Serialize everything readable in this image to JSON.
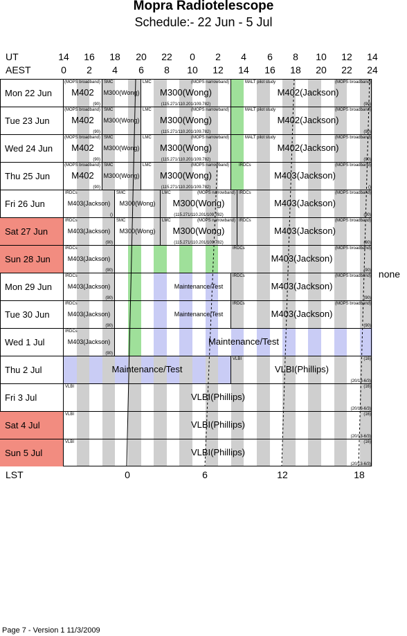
{
  "title": "Mopra Radiotelescope",
  "subtitle": "Schedule:- 22 Jun - 5  Jul",
  "axes": {
    "ut_label": "UT",
    "aest_label": "AEST",
    "lst_label": "LST",
    "ut_ticks": [
      "14",
      "16",
      "18",
      "20",
      "22",
      "0",
      "2",
      "4",
      "6",
      "8",
      "10",
      "12",
      "14"
    ],
    "aest_ticks": [
      "0",
      "2",
      "4",
      "6",
      "8",
      "10",
      "12",
      "14",
      "16",
      "18",
      "20",
      "22",
      "24"
    ],
    "lst_ticks": [
      "0",
      "6",
      "12",
      "18"
    ]
  },
  "side_note": "none",
  "footer": "Page 7 - Version 1  11/3/2009",
  "colors": {
    "weekend": "#f28c80",
    "gray": "#cfcfcf",
    "green": "#9fe09a",
    "blue": "#c9ccf5"
  },
  "days": [
    {
      "label": "Mon   22 Jun",
      "weekend": false
    },
    {
      "label": "Tue   23 Jun",
      "weekend": false
    },
    {
      "label": "Wed   24 Jun",
      "weekend": false
    },
    {
      "label": "Thu   25 Jun",
      "weekend": false
    },
    {
      "label": "Fri    26 Jun",
      "weekend": false
    },
    {
      "label": "Sat   27 Jun",
      "weekend": true
    },
    {
      "label": "Sun   28 Jun",
      "weekend": true
    },
    {
      "label": "Mon   29 Jun",
      "weekend": false
    },
    {
      "label": "Tue   30 Jun",
      "weekend": false
    },
    {
      "label": "Wed    1  Jul",
      "weekend": false
    },
    {
      "label": "Thu    2  Jul",
      "weekend": false
    },
    {
      "label": "Fri    3  Jul",
      "weekend": false
    },
    {
      "label": "Sat    4  Jul",
      "weekend": true
    },
    {
      "label": "Sun    5  Jul",
      "weekend": true
    }
  ],
  "blocks": {
    "m402": "M402",
    "m402_tag": "(MOPS broadband)",
    "m402_note": "(90)",
    "smc": "SMC",
    "m300_wong_small": "M300(Wong)",
    "lmc": "LMC",
    "mops_narrow": "(MOPS narrowband)",
    "m300_wong": "M300(Wong)",
    "freqs": "(115.271/110.201/109.782)",
    "malt": "MALT pilot study",
    "m402_jackson": "M402(Jackson)",
    "m402_jackson_tag": "(MOPS broadband)",
    "m402_jackson_note": "(90)",
    "irdcs": "IRDCs",
    "m403_jackson": "M403(Jackson)",
    "m403_tag": "(MOPS broadband)",
    "m403_note": "(90)",
    "m403_note_empty": "()",
    "maint": "Maintenance/Test",
    "vlbi": "VLBI",
    "vlbi_phillips": "VLBI(Phillips)",
    "vlbi_note_a": "(16)",
    "vlbi_note_b": "(20/13-6/3)"
  }
}
